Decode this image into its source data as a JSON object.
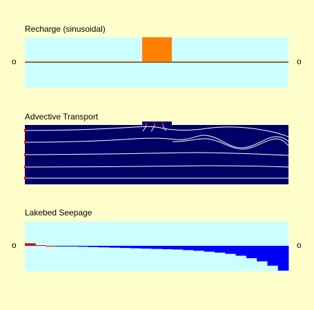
{
  "panels": {
    "recharge": {
      "title": "Recharge (sinusoidal)"
    },
    "transport": {
      "title": "Advective Transport"
    },
    "seepage": {
      "title": "Lakebed Seepage"
    }
  },
  "zero_label": "o",
  "colors": {
    "background": "#ffffcc",
    "light_panel": "#ccffff",
    "dark_panel": "#000066",
    "recharge_bar": "#ff8000",
    "baseline": "#996633",
    "flowline": "#ffffff",
    "source_marker": "#ff0000",
    "seepage_positive": "#cc0000",
    "seepage_negative": "#0000ff"
  },
  "seepage_profile": [
    0.4,
    0.1,
    0.0,
    -0.05,
    -0.1,
    -0.15,
    -0.2,
    -0.25,
    -0.3,
    -0.35,
    -0.4,
    -0.45,
    -0.5,
    -0.55,
    -0.6,
    -0.7,
    -0.8,
    -0.95,
    -1.1,
    -1.3,
    -1.6,
    -2.0,
    -2.5,
    -3.2,
    -4.0
  ]
}
